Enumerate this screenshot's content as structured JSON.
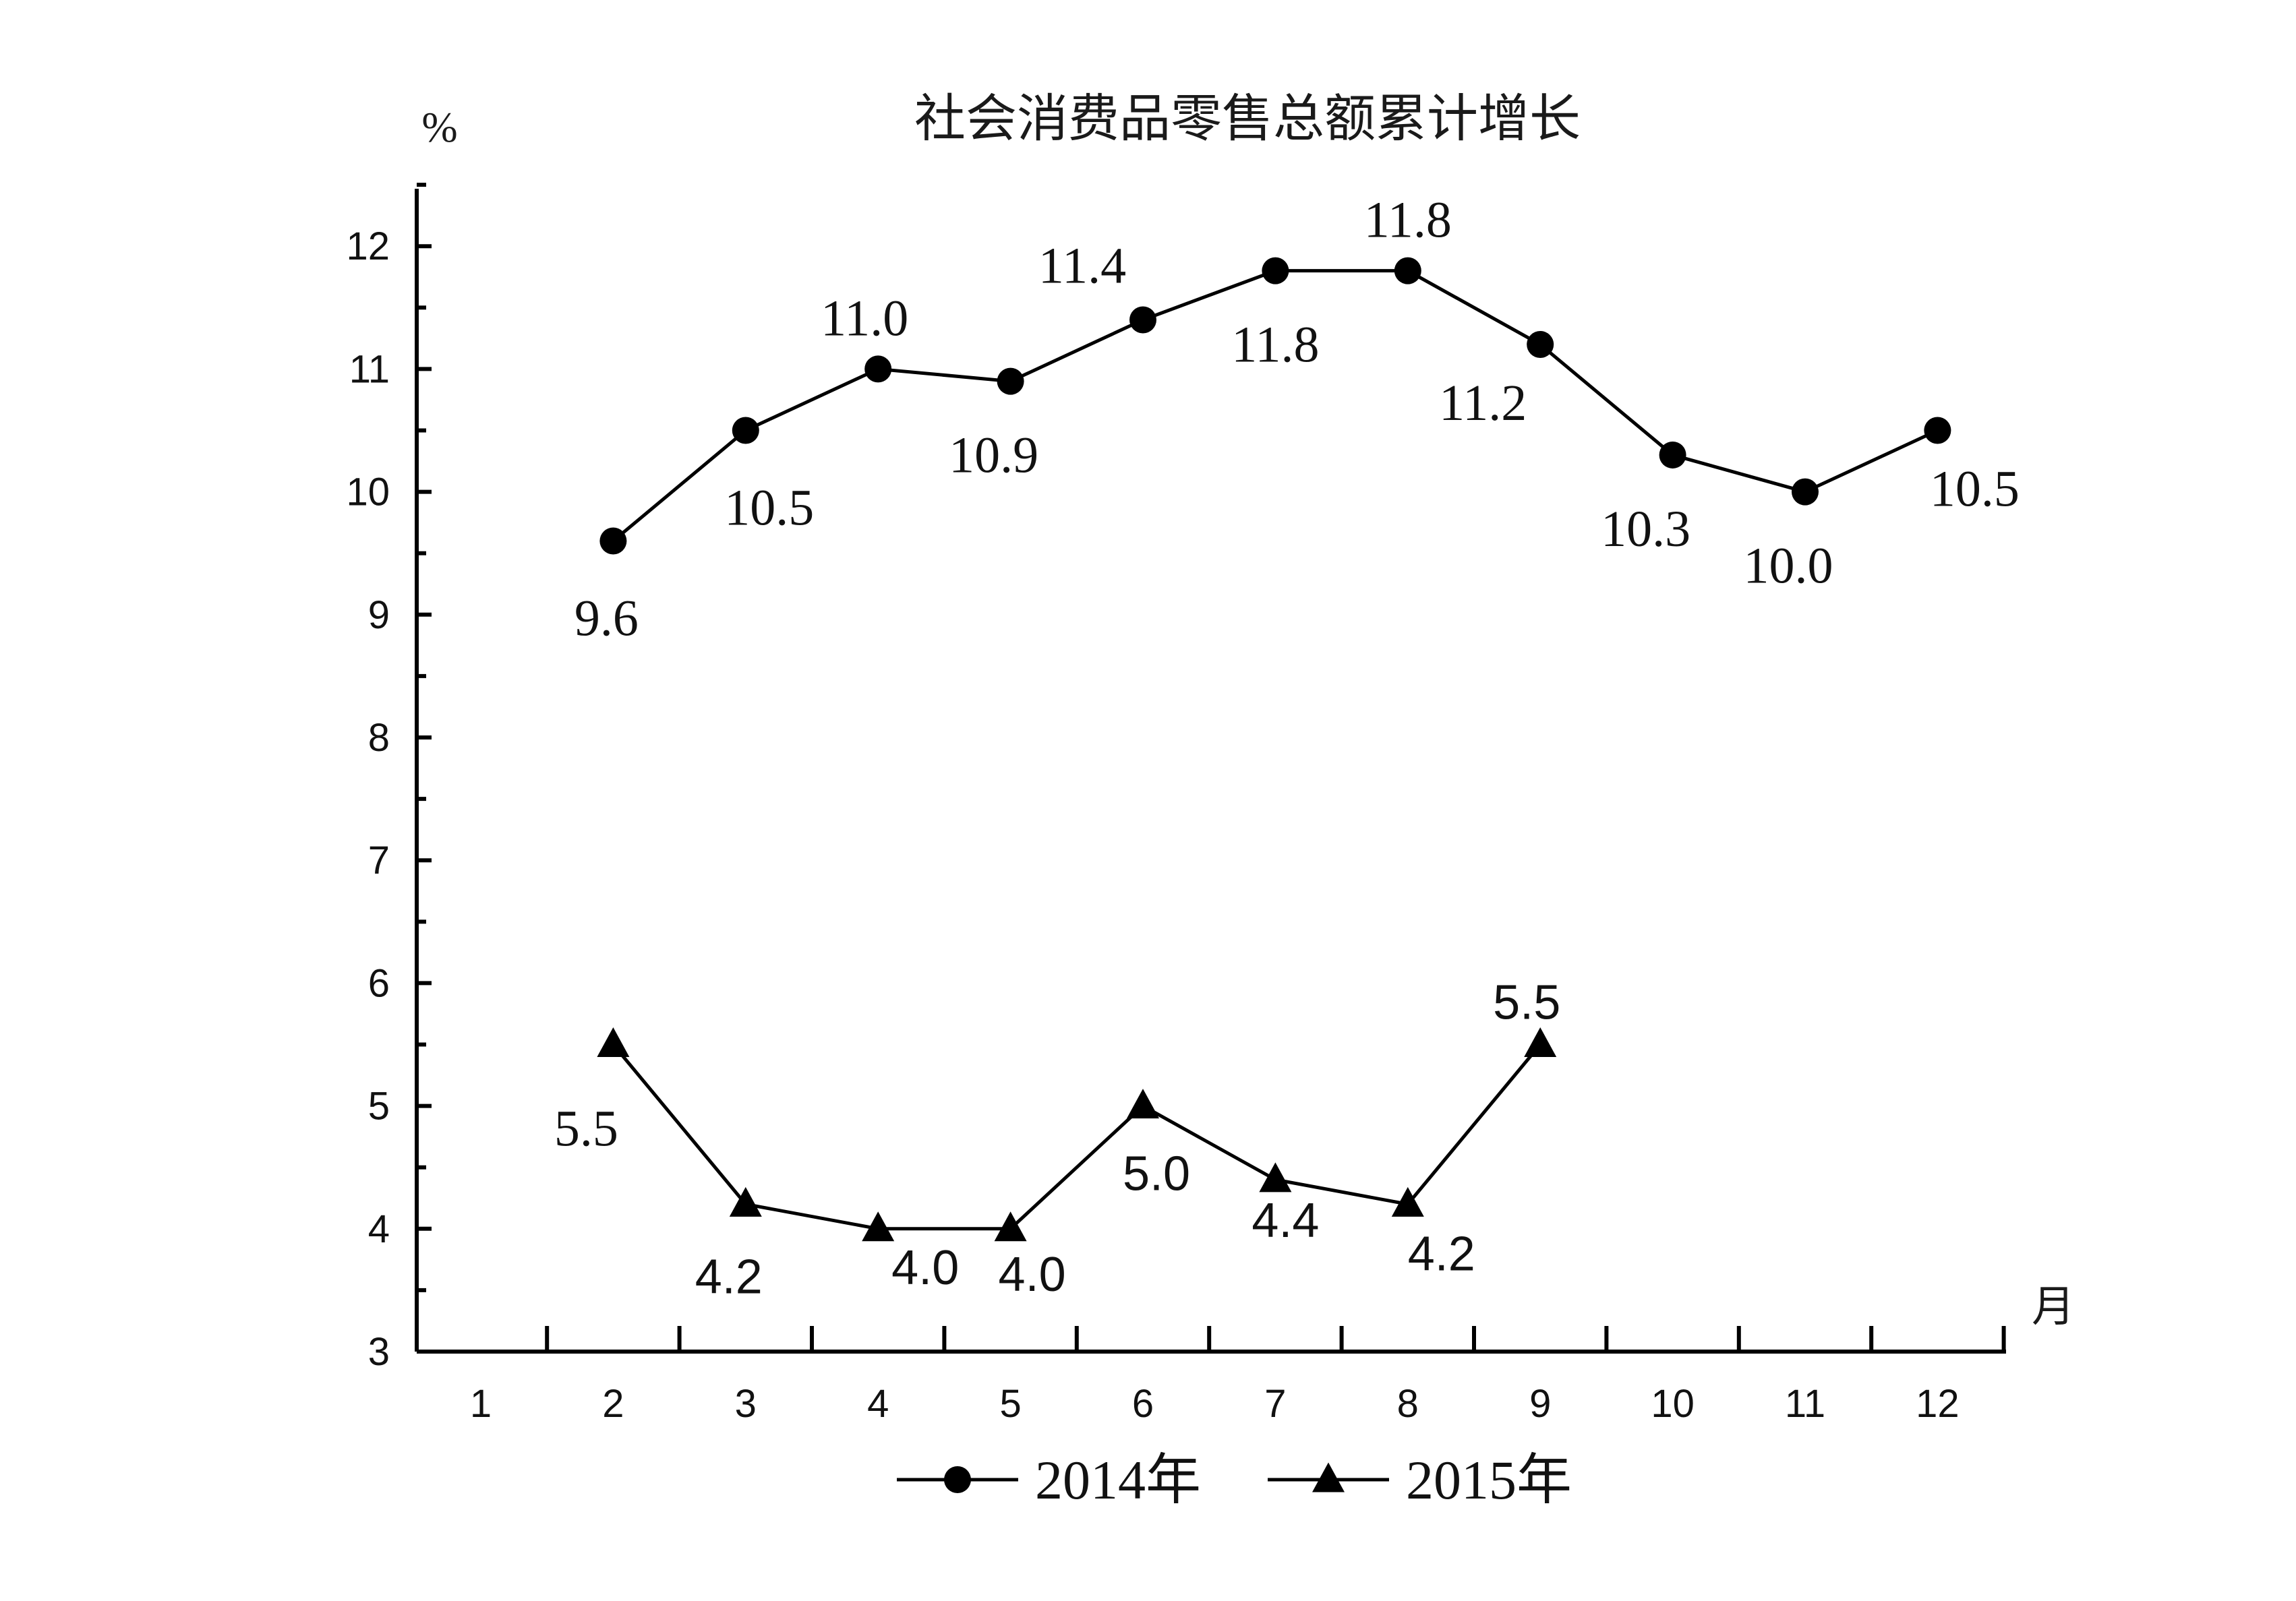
{
  "chart_data": {
    "type": "line",
    "title": "社会消费品零售总额累计增长",
    "ylabel": "%",
    "xlabel": "月",
    "categories": [
      "1",
      "2",
      "3",
      "4",
      "5",
      "6",
      "7",
      "8",
      "9",
      "10",
      "11",
      "12"
    ],
    "y_ticks": [
      "3",
      "4",
      "5",
      "6",
      "7",
      "8",
      "9",
      "10",
      "11",
      "12"
    ],
    "xlim": [
      1,
      12
    ],
    "ylim": [
      3,
      12
    ],
    "grid": false,
    "legend_position": "bottom",
    "series": [
      {
        "name": "2014年",
        "marker": "circle",
        "color": "#000000",
        "x": [
          2,
          3,
          4,
          5,
          6,
          7,
          8,
          9,
          10,
          11,
          12
        ],
        "values": [
          9.6,
          10.5,
          11.0,
          10.9,
          11.4,
          11.8,
          11.8,
          11.2,
          10.3,
          10.0,
          10.5
        ],
        "labels": [
          "9.6",
          "10.5",
          "11.0",
          "10.9",
          "11.4",
          "11.8",
          "11.8",
          "11.2",
          "10.3",
          "10.0",
          "10.5"
        ]
      },
      {
        "name": "2015年",
        "marker": "triangle",
        "color": "#000000",
        "x": [
          2,
          3,
          4,
          5,
          6,
          7,
          8,
          9
        ],
        "values": [
          5.5,
          4.2,
          4.0,
          4.0,
          5.0,
          4.4,
          4.2,
          5.5
        ],
        "labels": [
          "5.5",
          "4.2",
          "4.0",
          "4.0",
          "5.0",
          "4.4",
          "4.2",
          "5.5"
        ]
      }
    ]
  }
}
